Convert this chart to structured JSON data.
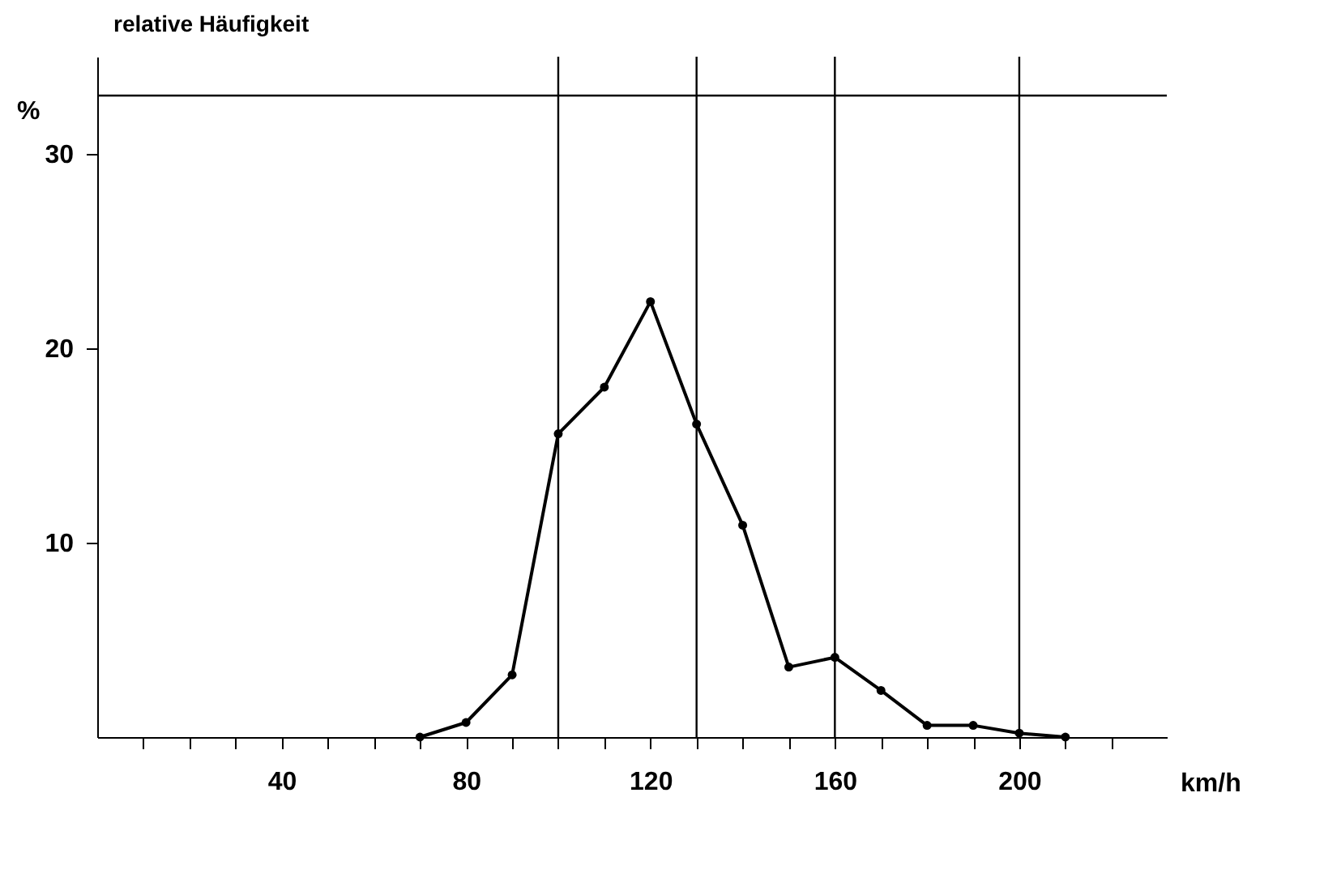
{
  "chart_data": {
    "type": "line",
    "title": "relative Häufigkeit",
    "xlabel": "km/h",
    "ylabel": "%",
    "x": [
      70,
      80,
      90,
      100,
      110,
      120,
      130,
      140,
      150,
      160,
      170,
      180,
      190,
      200,
      210
    ],
    "series": [
      {
        "color": "#000000",
        "values": [
          0,
          0.75,
          3.2,
          15.6,
          18.0,
          22.4,
          16.1,
          10.9,
          3.6,
          4.1,
          2.4,
          0.6,
          0.6,
          0.2,
          0
        ]
      }
    ],
    "xlim": [
      0,
      232
    ],
    "ylim": [
      0,
      35
    ],
    "xticks": [
      {
        "value": 10,
        "label": null
      },
      {
        "value": 20,
        "label": null
      },
      {
        "value": 30,
        "label": null
      },
      40,
      {
        "value": 50,
        "label": null
      },
      {
        "value": 60,
        "label": null
      },
      {
        "value": 70,
        "label": null
      },
      80,
      {
        "value": 90,
        "label": null
      },
      {
        "value": 100,
        "label": null
      },
      {
        "value": 110,
        "label": null
      },
      120,
      {
        "value": 130,
        "label": null
      },
      {
        "value": 140,
        "label": null
      },
      {
        "value": 150,
        "label": null
      },
      160,
      {
        "value": 170,
        "label": null
      },
      {
        "value": 180,
        "label": null
      },
      {
        "value": 190,
        "label": null
      },
      200,
      {
        "value": 210,
        "label": null
      },
      {
        "value": 220,
        "label": null
      }
    ],
    "yticks": [
      10,
      20,
      30
    ],
    "ref_lines": [
      {
        "axis": "x",
        "value": 100
      },
      {
        "axis": "x",
        "value": 130
      },
      {
        "axis": "x",
        "value": 160
      },
      {
        "axis": "x",
        "value": 200
      },
      {
        "axis": "y",
        "value": 33
      }
    ],
    "marker": "circle",
    "line_style": "solid",
    "grid": false,
    "legend": false
  }
}
